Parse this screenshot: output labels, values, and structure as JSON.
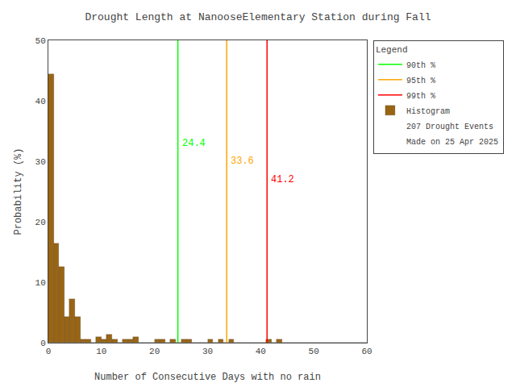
{
  "chart_data": {
    "type": "histogram",
    "title": "Drought Length at NanooseElementary Station during Fall",
    "xlabel": "Number of Consecutive Days with no rain",
    "ylabel": "Probability (%)",
    "bins": [
      0,
      1,
      2,
      3,
      4,
      5,
      6,
      7,
      8,
      9,
      10,
      11,
      12,
      13,
      14,
      15,
      16,
      17,
      18,
      19,
      20,
      21,
      22,
      23,
      24,
      25,
      26,
      27,
      28,
      29,
      30,
      31,
      32,
      33,
      34,
      35,
      36,
      37,
      38,
      39,
      40,
      41,
      42,
      43,
      44,
      45,
      46,
      47,
      48,
      49,
      50,
      51,
      52,
      53,
      54,
      55,
      56,
      57,
      58,
      59,
      60
    ],
    "values": [
      44.4,
      16.4,
      12.6,
      4.3,
      7.2,
      4.3,
      0.5,
      0.5,
      0.0,
      1.0,
      0.5,
      1.4,
      0.5,
      0.0,
      0.5,
      0.5,
      1.0,
      0.0,
      0.0,
      0.0,
      0.5,
      0.5,
      0.0,
      0.5,
      0.0,
      0.5,
      0.5,
      0.0,
      0.0,
      0.0,
      0.5,
      0.0,
      0.5,
      0.0,
      0.5,
      0.0,
      0.0,
      0.0,
      0.0,
      0.0,
      0.0,
      0.5,
      0.0,
      0.5,
      0.0,
      0.0,
      0.0,
      0.0,
      0.0,
      0.0,
      0.0,
      0.0,
      0.0,
      0.0,
      0.0,
      0.0,
      0.0,
      0.0,
      0.0,
      0.0
    ],
    "name": "Histogram",
    "color": "#996515",
    "percentile_lines": [
      {
        "name": "90th %",
        "value": 24.4,
        "color": "#00ff00"
      },
      {
        "name": "95th %",
        "value": 33.6,
        "color": "#ffa500"
      },
      {
        "name": "99th %",
        "value": 41.2,
        "color": "#ff0000"
      }
    ],
    "legend_title": "Legend",
    "legend_texts": [
      "207 Drought Events",
      "Made on 25 Apr 2025"
    ],
    "xlim": [
      0,
      60
    ],
    "ylim": [
      0,
      50
    ],
    "xticks": [
      0,
      10,
      20,
      30,
      40,
      50,
      60
    ],
    "yticks": [
      0,
      10,
      20,
      30,
      40,
      50
    ],
    "grid": false,
    "legend": "upper right"
  }
}
